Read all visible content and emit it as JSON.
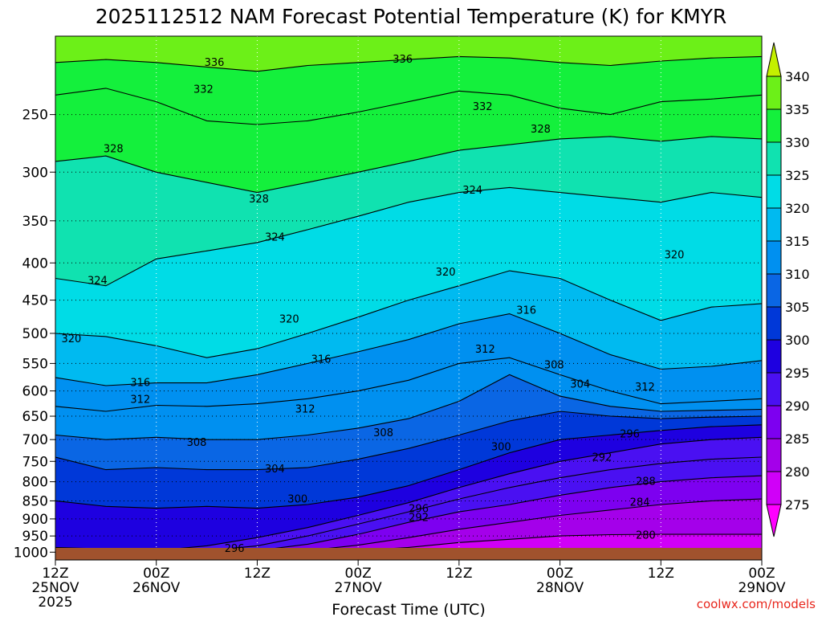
{
  "chart_data": {
    "type": "heatmap",
    "title": "2025112512 NAM Forecast Potential Temperature (K) for KMYR",
    "xlabel": "Forecast Time (UTC)",
    "ylabel": "",
    "units": "K",
    "y_axis": "pressure (hPa), inverted",
    "ylim": [
      1025,
      195
    ],
    "yticks": [
      250,
      300,
      350,
      400,
      450,
      500,
      550,
      600,
      650,
      700,
      750,
      800,
      850,
      900,
      950,
      1000
    ],
    "xlim_hours": [
      0,
      84
    ],
    "xticks": [
      {
        "hour": 0,
        "label": "12Z",
        "date": "25NOV",
        "year": "2025"
      },
      {
        "hour": 12,
        "label": "00Z",
        "date": "26NOV",
        "year": ""
      },
      {
        "hour": 24,
        "label": "12Z",
        "date": "",
        "year": ""
      },
      {
        "hour": 36,
        "label": "00Z",
        "date": "27NOV",
        "year": ""
      },
      {
        "hour": 48,
        "label": "12Z",
        "date": "",
        "year": ""
      },
      {
        "hour": 60,
        "label": "00Z",
        "date": "28NOV",
        "year": ""
      },
      {
        "hour": 72,
        "label": "12Z",
        "date": "",
        "year": ""
      },
      {
        "hour": 84,
        "label": "00Z",
        "date": "29NOV",
        "year": ""
      }
    ],
    "colorbar": {
      "levels": [
        275,
        280,
        285,
        290,
        295,
        300,
        305,
        310,
        315,
        320,
        325,
        330,
        335,
        340
      ],
      "colors": [
        "#ff00ff",
        "#d000f8",
        "#a400ea",
        "#7d00f0",
        "#4a10f2",
        "#1e00e0",
        "#0038d8",
        "#0a66e4",
        "#0090f0",
        "#00baf0",
        "#00dce6",
        "#10e2b0",
        "#14f03c",
        "#6cf018",
        "#c4f000"
      ]
    },
    "grid": true,
    "isentropes": [
      {
        "theta": 280,
        "p": [
          1000,
          1000,
          1000,
          1000,
          1000,
          1000,
          995,
          985,
          970,
          960,
          950,
          946,
          945,
          945,
          945
        ]
      },
      {
        "theta": 284,
        "p": [
          1000,
          1000,
          1000,
          1000,
          1000,
          995,
          978,
          955,
          930,
          910,
          890,
          875,
          860,
          850,
          845
        ]
      },
      {
        "theta": 288,
        "p": [
          1000,
          1000,
          1000,
          1000,
          995,
          975,
          945,
          910,
          880,
          860,
          835,
          815,
          800,
          790,
          785
        ]
      },
      {
        "theta": 292,
        "p": [
          1000,
          1000,
          1000,
          995,
          980,
          950,
          915,
          880,
          845,
          815,
          790,
          770,
          755,
          745,
          740
        ]
      },
      {
        "theta": 296,
        "p": [
          985,
          990,
          995,
          980,
          955,
          925,
          890,
          855,
          815,
          780,
          750,
          730,
          710,
          700,
          695
        ]
      },
      {
        "theta": 300,
        "p": [
          850,
          865,
          870,
          865,
          870,
          860,
          840,
          810,
          770,
          730,
          700,
          690,
          680,
          672,
          668
        ]
      },
      {
        "theta": 304,
        "p": [
          740,
          770,
          765,
          770,
          770,
          765,
          745,
          720,
          690,
          660,
          640,
          650,
          655,
          652,
          650
        ]
      },
      {
        "theta": 308,
        "p": [
          690,
          700,
          695,
          700,
          700,
          690,
          675,
          655,
          620,
          570,
          610,
          630,
          640,
          638,
          636
        ]
      },
      {
        "theta": 312,
        "p": [
          630,
          640,
          628,
          630,
          625,
          615,
          600,
          580,
          550,
          540,
          570,
          600,
          625,
          620,
          615
        ]
      },
      {
        "theta": 316,
        "p": [
          575,
          590,
          585,
          585,
          570,
          550,
          530,
          510,
          485,
          470,
          500,
          535,
          560,
          555,
          545
        ]
      },
      {
        "theta": 320,
        "p": [
          500,
          505,
          520,
          540,
          525,
          500,
          475,
          450,
          430,
          410,
          420,
          450,
          480,
          460,
          455
        ]
      },
      {
        "theta": 324,
        "p": [
          420,
          430,
          395,
          385,
          375,
          360,
          345,
          330,
          320,
          315,
          320,
          325,
          330,
          320,
          325
        ]
      },
      {
        "theta": 328,
        "p": [
          290,
          285,
          300,
          310,
          320,
          310,
          300,
          290,
          280,
          275,
          270,
          268,
          272,
          268,
          270
        ]
      },
      {
        "theta": 332,
        "p": [
          235,
          230,
          240,
          255,
          258,
          255,
          248,
          240,
          232,
          235,
          245,
          250,
          240,
          238,
          235
        ]
      },
      {
        "theta": 336,
        "p": [
          212,
          210,
          212,
          215,
          218,
          214,
          212,
          210,
          208,
          209,
          212,
          214,
          211,
          209,
          208
        ]
      }
    ],
    "isentrope_labels": [
      {
        "text": "336",
        "hour": 18.9,
        "p": 212
      },
      {
        "text": "336",
        "hour": 41.3,
        "p": 210
      },
      {
        "text": "332",
        "hour": 17.6,
        "p": 231
      },
      {
        "text": "332",
        "hour": 50.8,
        "p": 244
      },
      {
        "text": "328",
        "hour": 6.9,
        "p": 279
      },
      {
        "text": "328",
        "hour": 57.7,
        "p": 262
      },
      {
        "text": "328",
        "hour": 24.2,
        "p": 327
      },
      {
        "text": "324",
        "hour": 49.6,
        "p": 318
      },
      {
        "text": "324",
        "hour": 26.1,
        "p": 369
      },
      {
        "text": "324",
        "hour": 5.0,
        "p": 423
      },
      {
        "text": "320",
        "hour": 73.6,
        "p": 390
      },
      {
        "text": "320",
        "hour": 46.4,
        "p": 412
      },
      {
        "text": "320",
        "hour": 27.8,
        "p": 478
      },
      {
        "text": "320",
        "hour": 1.9,
        "p": 509
      },
      {
        "text": "316",
        "hour": 56.0,
        "p": 465
      },
      {
        "text": "316",
        "hour": 31.6,
        "p": 543
      },
      {
        "text": "316",
        "hour": 10.1,
        "p": 585
      },
      {
        "text": "312",
        "hour": 51.1,
        "p": 526
      },
      {
        "text": "312",
        "hour": 70.1,
        "p": 593
      },
      {
        "text": "312",
        "hour": 10.1,
        "p": 617
      },
      {
        "text": "312",
        "hour": 29.7,
        "p": 636
      },
      {
        "text": "308",
        "hour": 59.3,
        "p": 553
      },
      {
        "text": "308",
        "hour": 39.0,
        "p": 686
      },
      {
        "text": "308",
        "hour": 16.8,
        "p": 707
      },
      {
        "text": "304",
        "hour": 62.4,
        "p": 588
      },
      {
        "text": "304",
        "hour": 26.1,
        "p": 769
      },
      {
        "text": "300",
        "hour": 53.0,
        "p": 717
      },
      {
        "text": "300",
        "hour": 28.8,
        "p": 846
      },
      {
        "text": "296",
        "hour": 68.3,
        "p": 688
      },
      {
        "text": "296",
        "hour": 21.3,
        "p": 989
      },
      {
        "text": "296",
        "hour": 43.2,
        "p": 872
      },
      {
        "text": "292",
        "hour": 65.0,
        "p": 741
      },
      {
        "text": "292",
        "hour": 43.2,
        "p": 897
      },
      {
        "text": "288",
        "hour": 70.2,
        "p": 800
      },
      {
        "text": "284",
        "hour": 69.5,
        "p": 854
      },
      {
        "text": "280",
        "hour": 70.2,
        "p": 948
      }
    ]
  },
  "footer": {
    "credit": "coolwx.com/models"
  }
}
